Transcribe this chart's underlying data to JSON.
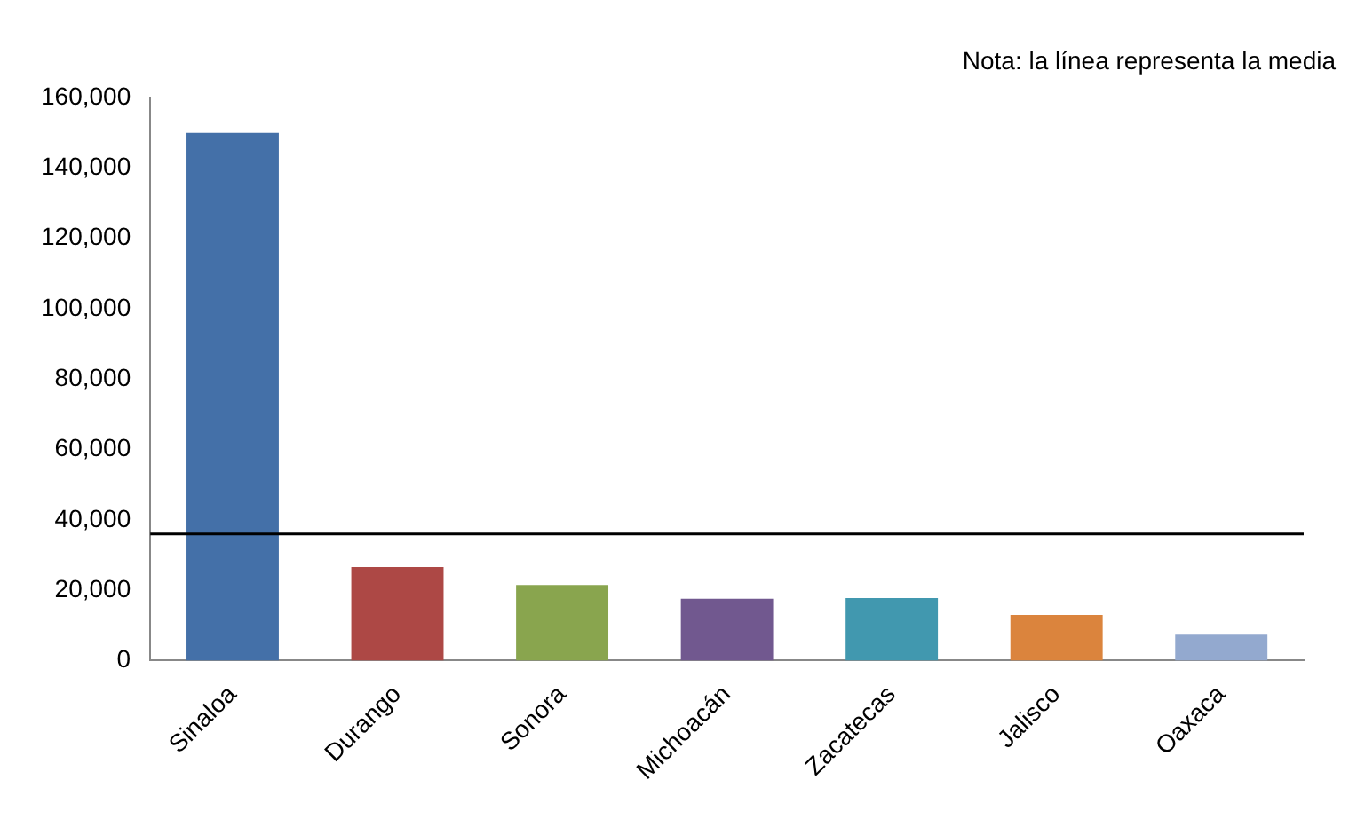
{
  "chart_data": {
    "type": "bar",
    "categories": [
      "Sinaloa",
      "Durango",
      "Sonora",
      "Michoacán",
      "Zacatecas",
      "Jalisco",
      "Oaxaca"
    ],
    "values": [
      150000,
      26600,
      21500,
      17600,
      17800,
      13000,
      7400
    ],
    "colors": [
      "#4470a8",
      "#ad4845",
      "#89a54e",
      "#71588f",
      "#4198af",
      "#db843d",
      "#93a9cf"
    ],
    "ylim": [
      0,
      160000
    ],
    "yticks": [
      0,
      {
        "value": 20000,
        "label": "20,000"
      },
      {
        "value": 40000,
        "label": "40,000"
      },
      {
        "value": 60000,
        "label": "60,000"
      },
      {
        "value": 80000,
        "label": "80,000"
      },
      {
        "value": 100000,
        "label": "100,000"
      },
      {
        "value": 120000,
        "label": "120,000"
      },
      {
        "value": 140000,
        "label": "140,000"
      },
      {
        "value": 160000,
        "label": "160,000"
      }
    ],
    "grid": false,
    "ref_lines": [
      {
        "axis": "y",
        "value": 36000,
        "color": "#000000"
      }
    ],
    "annotations": [
      "Nota: la línea representa la media"
    ]
  }
}
